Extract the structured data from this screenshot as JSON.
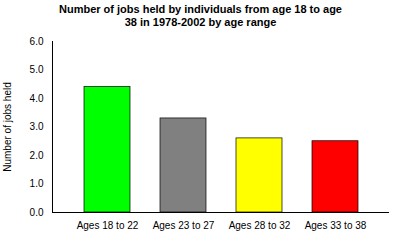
{
  "chart_data": {
    "type": "bar",
    "title": "Number of jobs held by individuals from age 18 to age\n38 in 1978-2002 by age range",
    "ylabel": "Number of jobs held",
    "categories": [
      "Ages 18 to 22",
      "Ages 23 to 27",
      "Ages 28 to 32",
      "Ages 33 to 38"
    ],
    "values": [
      4.4,
      3.3,
      2.6,
      2.5
    ],
    "colors": [
      "#00ff00",
      "#808080",
      "#ffff00",
      "#ff0000"
    ],
    "ylim": [
      0,
      6.0
    ],
    "yticks": [
      {
        "value": 0,
        "label": "0.0"
      },
      {
        "value": 1,
        "label": "1.0"
      },
      {
        "value": 2,
        "label": "2.0"
      },
      {
        "value": 3,
        "label": "3.0"
      },
      {
        "value": 4,
        "label": "4.0"
      },
      {
        "value": 5,
        "label": "5.0"
      },
      {
        "value": 6,
        "label": "6.0"
      }
    ]
  }
}
